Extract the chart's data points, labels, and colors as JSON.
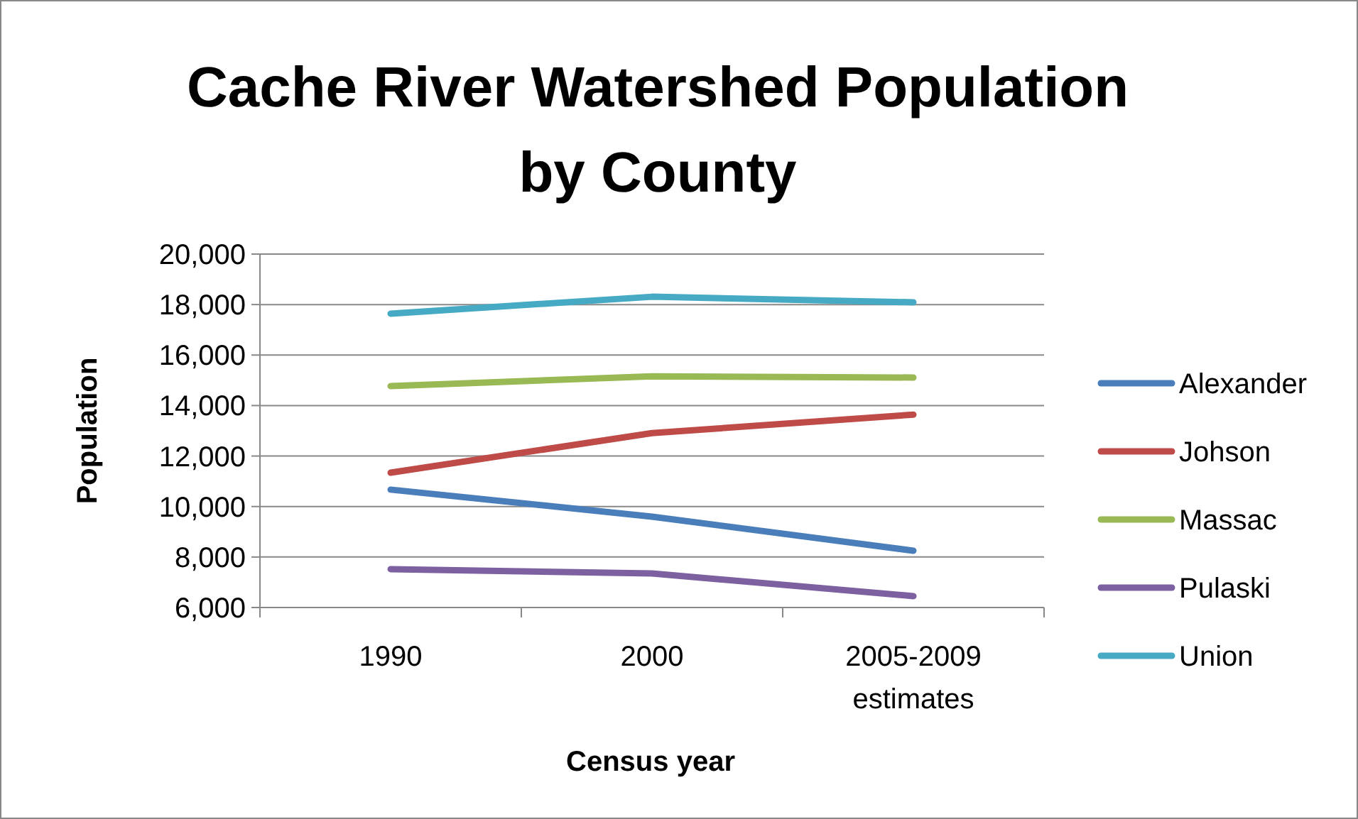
{
  "chart_data": {
    "type": "line",
    "title": "Cache River Watershed Population by County",
    "xlabel": "Census year",
    "ylabel": "Population",
    "categories": [
      "1990",
      "2000",
      "2005-2009 estimates"
    ],
    "ylim": [
      6000,
      20000
    ],
    "yticks": [
      {
        "value": 6000,
        "label": "6,000"
      },
      {
        "value": 8000,
        "label": "8,000"
      },
      {
        "value": 10000,
        "label": "10,000"
      },
      {
        "value": 12000,
        "label": "12,000"
      },
      {
        "value": 14000,
        "label": "14,000"
      },
      {
        "value": 16000,
        "label": "16,000"
      },
      {
        "value": 18000,
        "label": "18,000"
      },
      {
        "value": 20000,
        "label": "20,000"
      }
    ],
    "grid": "y",
    "legend": "right",
    "marker": "none",
    "line_style": "solid",
    "series": [
      {
        "name": "Alexander",
        "color": "#4a7ebb",
        "values": [
          10670,
          9600,
          8250
        ]
      },
      {
        "name": "Johson",
        "color": "#be4b48",
        "values": [
          11340,
          12910,
          13640
        ]
      },
      {
        "name": "Massac",
        "color": "#98b954",
        "values": [
          14770,
          15160,
          15110
        ]
      },
      {
        "name": "Pulaski",
        "color": "#7d60a0",
        "values": [
          7520,
          7350,
          6450
        ]
      },
      {
        "name": "Union",
        "color": "#46aac5",
        "values": [
          17640,
          18310,
          18090
        ]
      }
    ]
  }
}
